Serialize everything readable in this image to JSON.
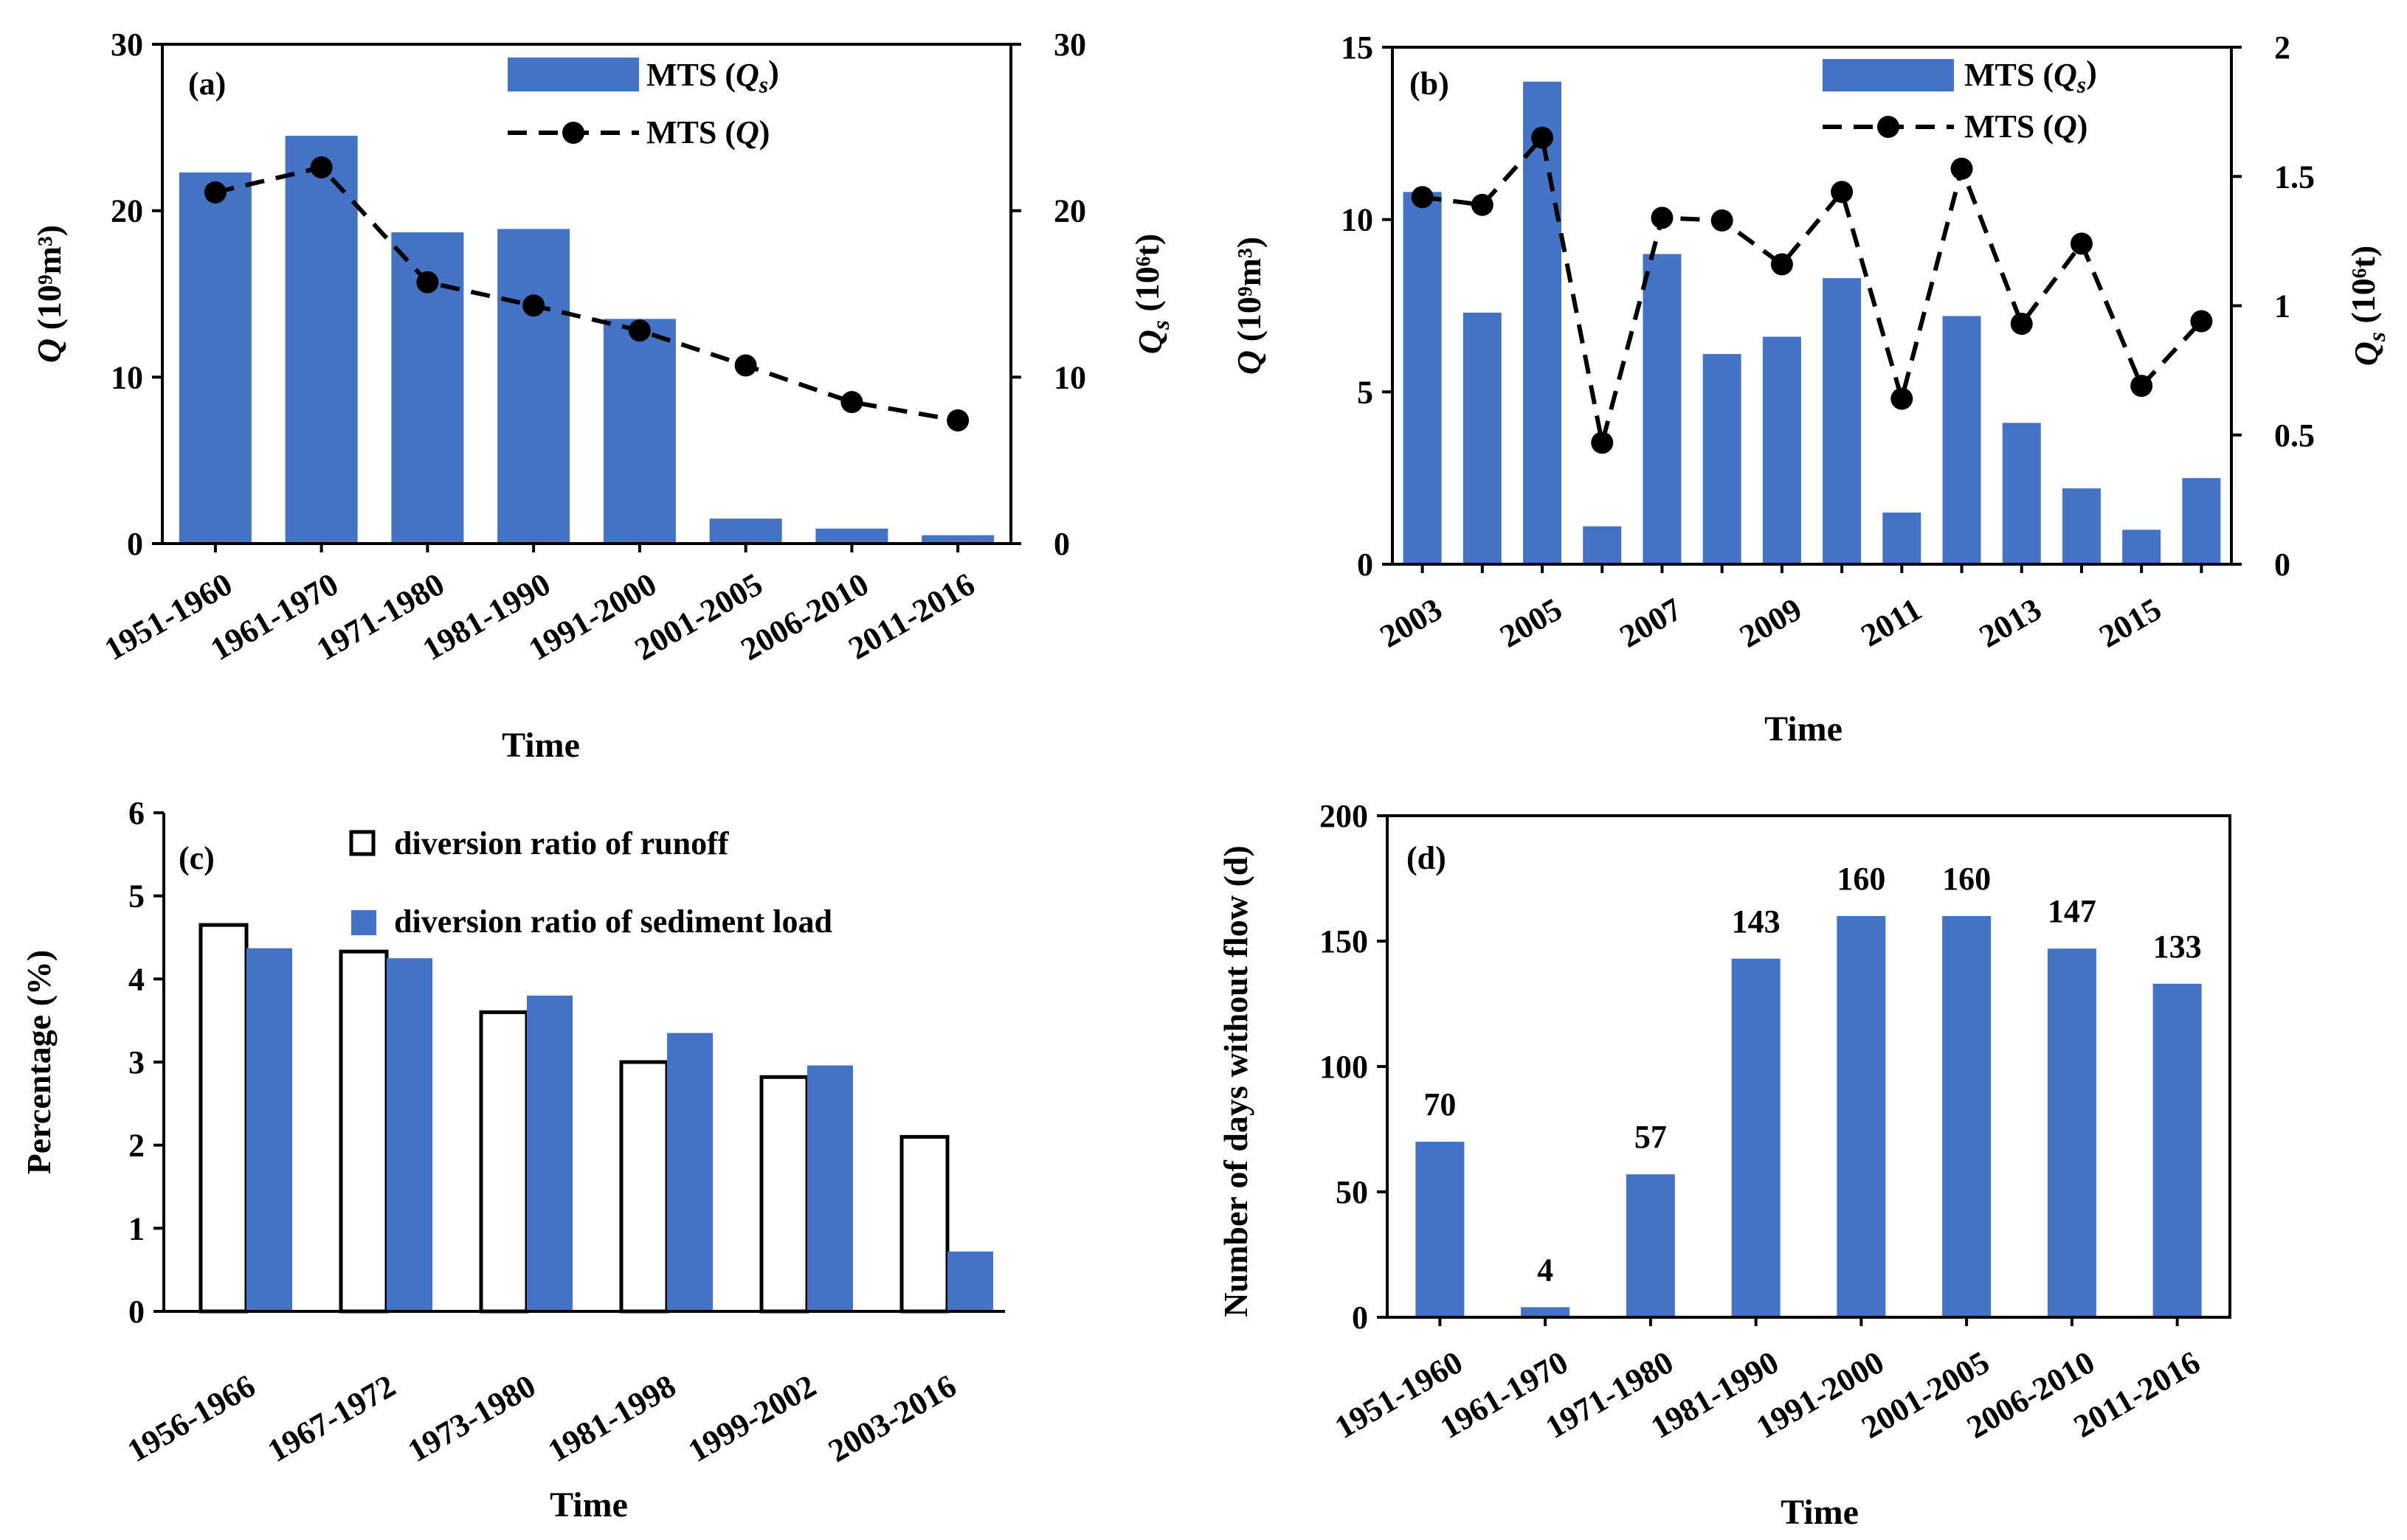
{
  "colors": {
    "bar": "#4472C4",
    "axis": "#000000",
    "background": "#ffffff"
  },
  "chart_data": [
    {
      "id": "a",
      "type": "bar",
      "panel_label": "(a)",
      "categories": [
        "1951-1960",
        "1961-1970",
        "1971-1980",
        "1981-1990",
        "1991-2000",
        "2001-2005",
        "2006-2010",
        "2011-2016"
      ],
      "series": [
        {
          "name": "MTS (Qs)",
          "type": "bar",
          "axis": "right",
          "values": [
            22.3,
            24.5,
            18.7,
            18.9,
            13.5,
            1.5,
            0.9,
            0.5
          ]
        },
        {
          "name": "MTS (Q)",
          "type": "line",
          "axis": "left",
          "values": [
            21.1,
            22.6,
            15.7,
            14.3,
            12.8,
            10.7,
            8.5,
            7.4
          ]
        }
      ],
      "xlabel": "Time",
      "ylabel": "Q (10⁹m³)",
      "y2label": "Qs (10⁶t)",
      "ylim": [
        0,
        30
      ],
      "yticks": [
        0,
        10,
        20,
        30
      ],
      "y2lim": [
        0,
        30
      ],
      "y2ticks": [
        0,
        10,
        20,
        30
      ],
      "legend_position": "top-center"
    },
    {
      "id": "b",
      "type": "bar",
      "panel_label": "(b)",
      "categories": [
        "2003",
        "2004",
        "2005",
        "2006",
        "2007",
        "2008",
        "2009",
        "2010",
        "2011",
        "2012",
        "2013",
        "2014",
        "2015",
        "2016"
      ],
      "tick_labels": [
        "2003",
        "2005",
        "2007",
        "2009",
        "2011",
        "2013",
        "2015"
      ],
      "series": [
        {
          "name": "MTS (Qs)",
          "type": "bar",
          "axis": "left",
          "values": [
            10.8,
            7.3,
            14.0,
            1.1,
            9.0,
            6.1,
            6.6,
            8.3,
            1.5,
            7.2,
            4.1,
            2.2,
            1.0,
            2.5
          ]
        },
        {
          "name": "MTS (Q)",
          "type": "line",
          "axis": "right",
          "values": [
            1.42,
            1.39,
            1.65,
            0.47,
            1.34,
            1.33,
            1.16,
            1.44,
            0.64,
            1.53,
            0.93,
            1.24,
            0.69,
            0.94
          ]
        }
      ],
      "xlabel": "Time",
      "ylabel": "Q (10⁹m³)",
      "y2label": "Qs (10⁶t)",
      "ylim": [
        0,
        15
      ],
      "yticks": [
        0,
        5,
        10,
        15
      ],
      "y2lim": [
        0,
        2
      ],
      "y2ticks": [
        0,
        0.5,
        1,
        1.5,
        2
      ],
      "legend_position": "top-right"
    },
    {
      "id": "c",
      "type": "bar",
      "panel_label": "(c)",
      "categories": [
        "1956-1966",
        "1967-1972",
        "1973-1980",
        "1981-1998",
        "1999-2002",
        "2003-2016"
      ],
      "series": [
        {
          "name": "diversion ratio of runoff",
          "style": "outline",
          "values": [
            4.65,
            4.33,
            3.6,
            3.0,
            2.82,
            2.1
          ]
        },
        {
          "name": "diversion ratio of sediment load",
          "style": "filled",
          "values": [
            4.37,
            4.25,
            3.8,
            3.35,
            2.96,
            0.72
          ]
        }
      ],
      "xlabel": "Time",
      "ylabel": "Percentage (%)",
      "ylim": [
        0,
        6
      ],
      "yticks": [
        0,
        1,
        2,
        3,
        4,
        5,
        6
      ],
      "legend_position": "top-center"
    },
    {
      "id": "d",
      "type": "bar",
      "panel_label": "(d)",
      "categories": [
        "1951-1960",
        "1961-1970",
        "1971-1980",
        "1981-1990",
        "1991-2000",
        "2001-2005",
        "2006-2010",
        "2011-2016"
      ],
      "values": [
        70,
        4,
        57,
        143,
        160,
        160,
        147,
        133
      ],
      "data_labels": [
        "70",
        "4",
        "57",
        "143",
        "160",
        "160",
        "147",
        "133"
      ],
      "xlabel": "Time",
      "ylabel": "Number of days without flow (d)",
      "ylim": [
        0,
        200
      ],
      "yticks": [
        0,
        50,
        100,
        150,
        200
      ]
    }
  ]
}
